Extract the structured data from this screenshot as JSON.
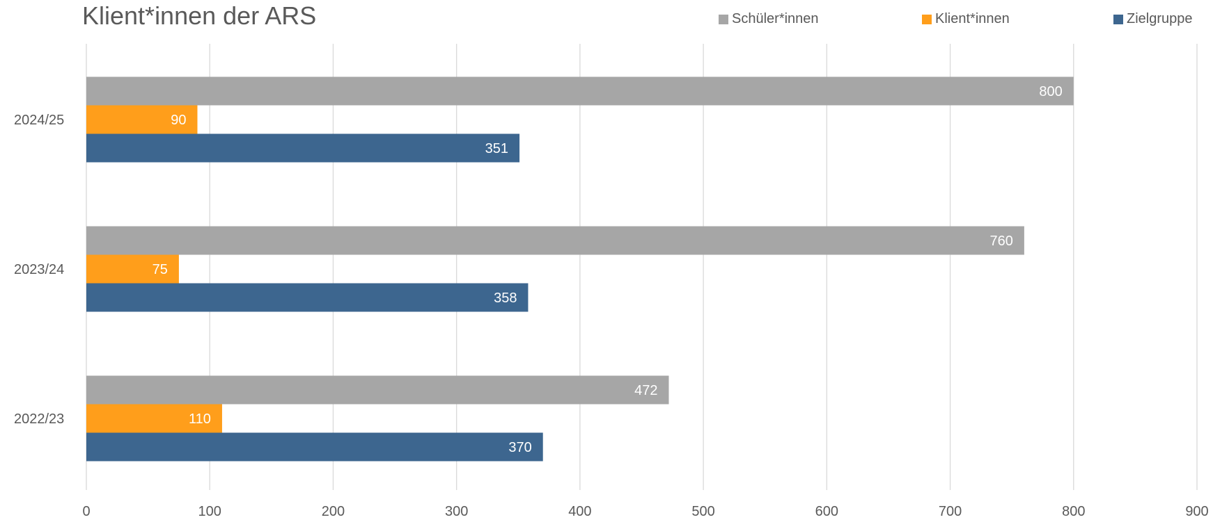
{
  "colors": {
    "schueler": "#a6a6a6",
    "klienten": "#ff9e1b",
    "zielgruppe": "#3d668f",
    "grid": "#d9d9d9",
    "text": "#595959"
  },
  "chart_data": {
    "type": "bar",
    "orientation": "horizontal",
    "title": "Klient*innen der ARS",
    "categories": [
      "2024/25",
      "2023/24",
      "2022/23"
    ],
    "series": [
      {
        "name": "Schüler*innen",
        "color": "#a6a6a6",
        "values": [
          800,
          760,
          472
        ]
      },
      {
        "name": "Klient*innen",
        "color": "#ff9e1b",
        "values": [
          90,
          75,
          110
        ]
      },
      {
        "name": "Zielgruppe",
        "color": "#3d668f",
        "values": [
          351,
          358,
          370
        ]
      }
    ],
    "xlim": [
      0,
      900
    ],
    "xticks": [
      "0",
      "100",
      "200",
      "300",
      "400",
      "500",
      "600",
      "700",
      "800",
      "900"
    ],
    "grid": true,
    "legend_position": "top-right",
    "data_labels": true
  }
}
